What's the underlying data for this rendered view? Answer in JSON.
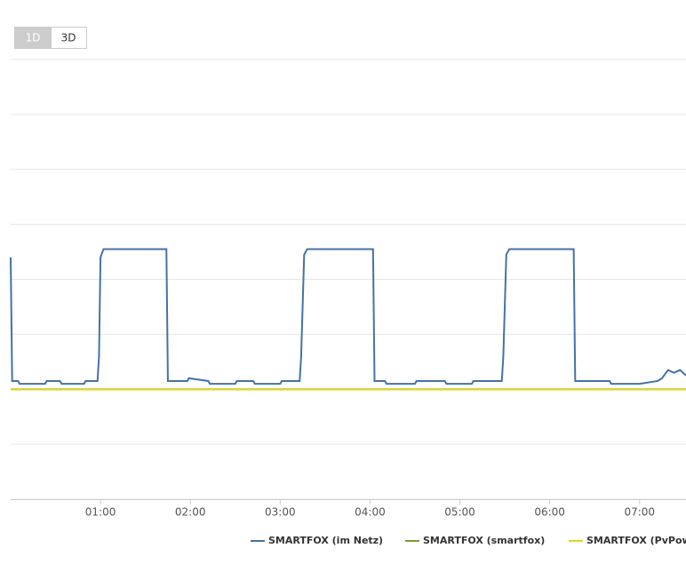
{
  "range_buttons": [
    "1D",
    "3D"
  ],
  "active_range": "1D",
  "chart_data": {
    "type": "line",
    "xlim": [
      "00:00",
      "07:31"
    ],
    "xticks": [
      "01:00",
      "02:00",
      "03:00",
      "04:00",
      "05:00",
      "06:00",
      "07:00"
    ],
    "ylim": [
      -2,
      6
    ],
    "yticks": [
      -2,
      -1,
      0,
      1,
      2,
      3,
      4,
      5,
      6
    ],
    "ytick_labels": false,
    "grid": true,
    "series": [
      {
        "name": "SMARTFOX (im Netz)",
        "color": "#4572a7",
        "x": [
          "00:00",
          "00:01",
          "00:05",
          "00:06",
          "00:23",
          "00:24",
          "00:33",
          "00:34",
          "00:49",
          "00:50",
          "00:58",
          "00:59",
          "01:00",
          "01:02",
          "01:44",
          "01:45",
          "01:58",
          "01:59",
          "02:12",
          "02:13",
          "02:30",
          "02:31",
          "02:42",
          "02:43",
          "03:00",
          "03:01",
          "03:13",
          "03:14",
          "03:16",
          "03:18",
          "04:02",
          "04:03",
          "04:10",
          "04:11",
          "04:30",
          "04:31",
          "04:50",
          "04:51",
          "05:08",
          "05:09",
          "05:28",
          "05:29",
          "05:31",
          "05:33",
          "06:16",
          "06:17",
          "06:40",
          "06:41",
          "07:00",
          "07:12",
          "07:15",
          "07:19",
          "07:23",
          "07:27",
          "07:31"
        ],
        "values": [
          2.4,
          0.15,
          0.15,
          0.1,
          0.1,
          0.15,
          0.15,
          0.1,
          0.1,
          0.15,
          0.15,
          0.6,
          2.4,
          2.55,
          2.55,
          0.15,
          0.15,
          0.2,
          0.15,
          0.1,
          0.1,
          0.15,
          0.15,
          0.1,
          0.1,
          0.15,
          0.15,
          0.6,
          2.45,
          2.55,
          2.55,
          0.15,
          0.15,
          0.1,
          0.1,
          0.15,
          0.15,
          0.1,
          0.1,
          0.15,
          0.15,
          0.6,
          2.45,
          2.55,
          2.55,
          0.15,
          0.15,
          0.1,
          0.1,
          0.15,
          0.2,
          0.35,
          0.3,
          0.35,
          0.25
        ]
      },
      {
        "name": "SMARTFOX (smartfox)",
        "color": "#7a9a3a",
        "x": [
          "00:00",
          "07:31"
        ],
        "values": [
          0,
          0
        ]
      },
      {
        "name": "SMARTFOX (PvPower)",
        "color": "#e6d320",
        "x": [
          "00:00",
          "07:31"
        ],
        "values": [
          0,
          0
        ]
      }
    ]
  }
}
